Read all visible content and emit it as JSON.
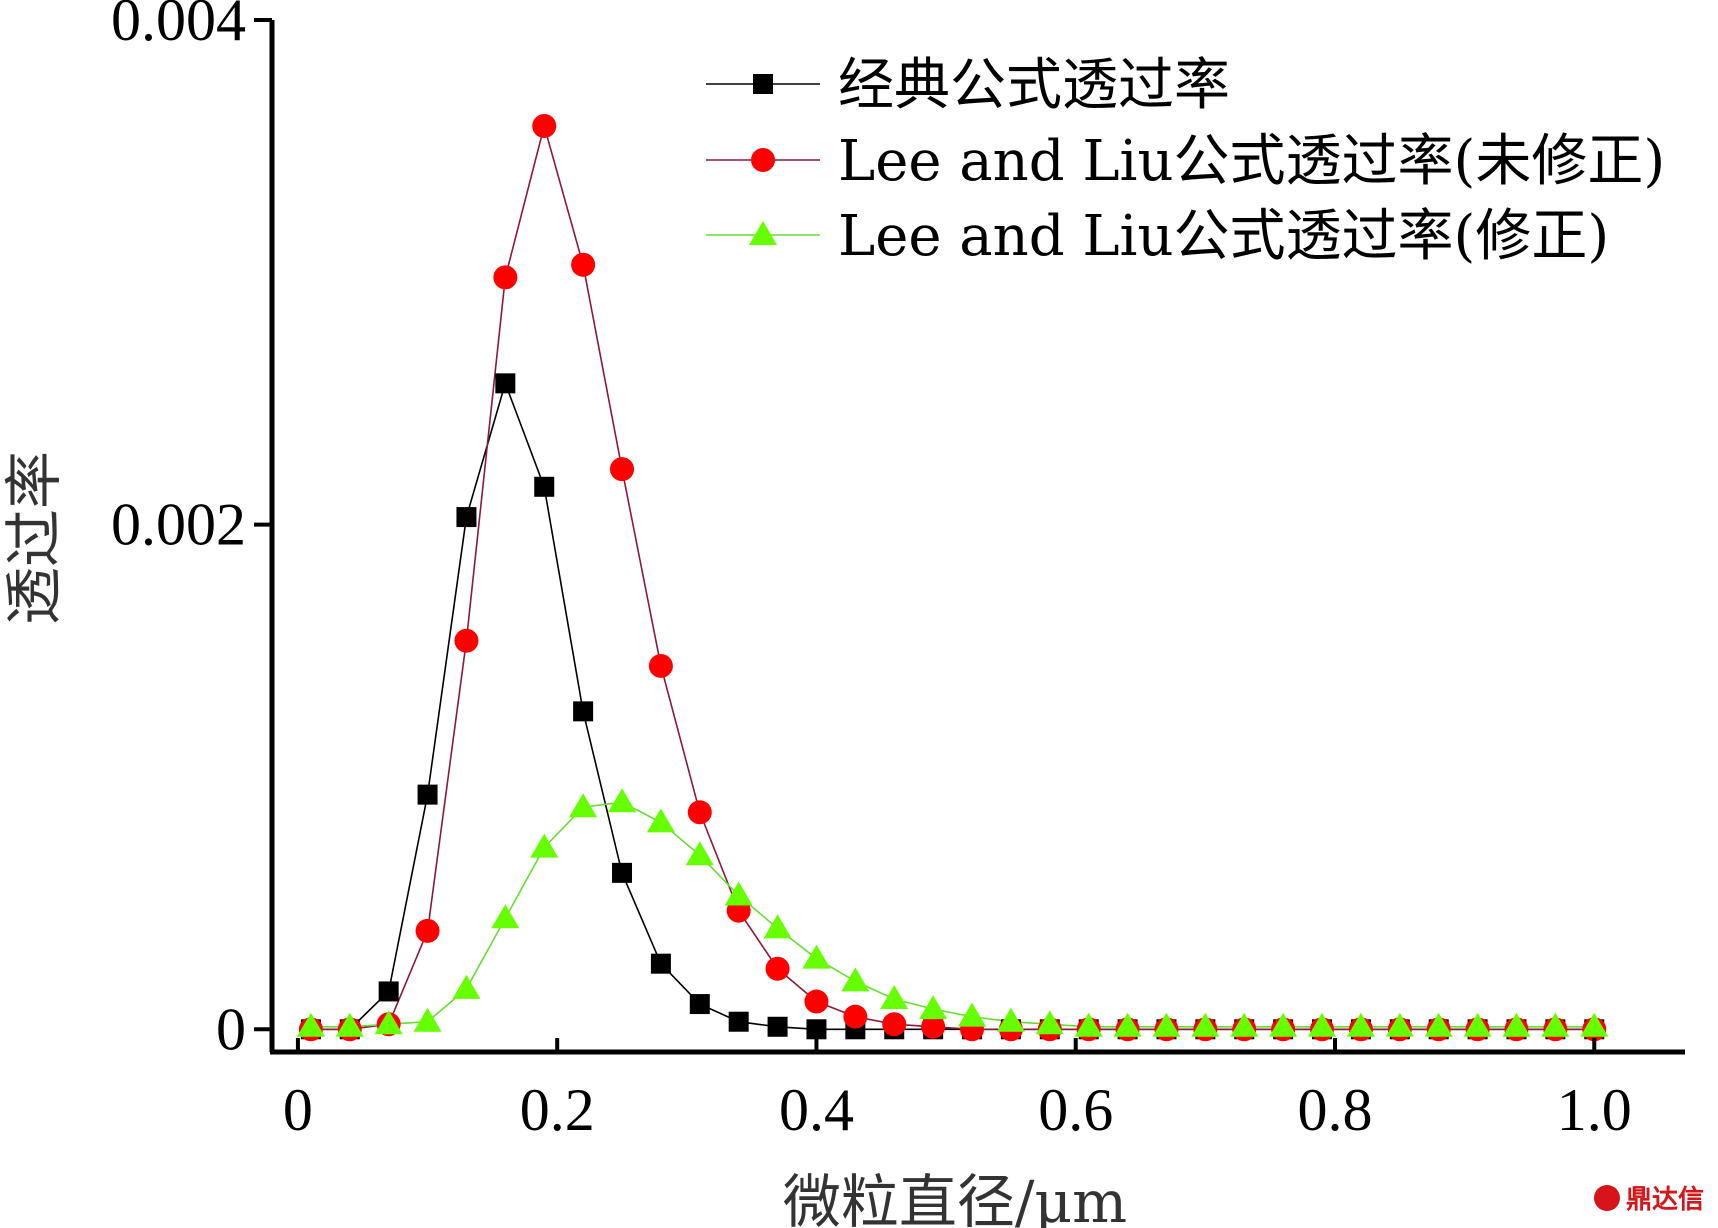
{
  "chart_data": {
    "type": "line",
    "title": "",
    "xlabel": "微粒直径/μm",
    "ylabel": "透过率",
    "xlim": [
      -0.02,
      1.07
    ],
    "ylim": [
      -9e-05,
      0.004
    ],
    "xticks": [
      0,
      0.2,
      0.4,
      0.6,
      0.8,
      1.0
    ],
    "xtick_labels": [
      "0",
      "0.2",
      "0.4",
      "0.6",
      "0.8",
      "1.0"
    ],
    "yticks": [
      0,
      0.002,
      0.004
    ],
    "ytick_labels": [
      "0",
      "0.002",
      "0.004"
    ],
    "legend_position": "top-right",
    "x": [
      0.01,
      0.04,
      0.07,
      0.1,
      0.13,
      0.16,
      0.19,
      0.22,
      0.25,
      0.28,
      0.31,
      0.34,
      0.37,
      0.4,
      0.43,
      0.46,
      0.49,
      0.52,
      0.55,
      0.58,
      0.61,
      0.64,
      0.67,
      0.7,
      0.73,
      0.76,
      0.79,
      0.82,
      0.85,
      0.88,
      0.91,
      0.94,
      0.97,
      1.0
    ],
    "series": [
      {
        "name": "经典公式透过率",
        "color": "#000000",
        "marker": "square",
        "values": [
          0,
          0,
          0.00015,
          0.00093,
          0.00203,
          0.00256,
          0.00215,
          0.00126,
          0.00062,
          0.00026,
          0.0001,
          3e-05,
          1e-05,
          0,
          0,
          0,
          0,
          0,
          0,
          0,
          0,
          0,
          0,
          0,
          0,
          0,
          0,
          0,
          0,
          0,
          0,
          0,
          0,
          0
        ]
      },
      {
        "name": "Lee and Liu公式透过率(未修正)",
        "color": "#ff0000",
        "line_color": "#8b1a3a",
        "marker": "circle",
        "values": [
          0,
          0,
          2e-05,
          0.00039,
          0.00154,
          0.00298,
          0.00358,
          0.00303,
          0.00222,
          0.00144,
          0.00086,
          0.00047,
          0.00024,
          0.00011,
          5e-05,
          2e-05,
          1e-05,
          0,
          0,
          0,
          0,
          0,
          0,
          0,
          0,
          0,
          0,
          0,
          0,
          0,
          0,
          0,
          0,
          0
        ]
      },
      {
        "name": "Lee and Liu公式透过率(修正)",
        "color": "#66ff00",
        "line_color": "#66dd33",
        "marker": "triangle",
        "values": [
          1e-05,
          1e-05,
          2e-05,
          3e-05,
          0.00016,
          0.00044,
          0.00072,
          0.00088,
          0.0009,
          0.00082,
          0.00069,
          0.00053,
          0.0004,
          0.00028,
          0.00019,
          0.00012,
          8e-05,
          5e-05,
          3e-05,
          2e-05,
          1e-05,
          1e-05,
          1e-05,
          1e-05,
          1e-05,
          1e-05,
          1e-05,
          1e-05,
          1e-05,
          1e-05,
          1e-05,
          1e-05,
          1e-05,
          1e-05
        ]
      }
    ]
  },
  "watermark": {
    "text": "鼎达信",
    "color": "#d7141a"
  }
}
